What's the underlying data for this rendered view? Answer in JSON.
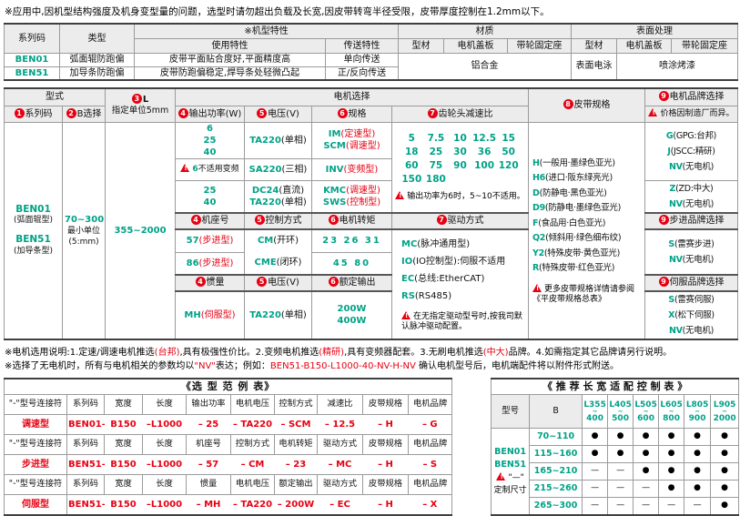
{
  "colors": {
    "teal": "#00a287",
    "red": "#e60012",
    "header_bg": "#ececec"
  },
  "page": {
    "top_note": "※应用中,因机型结构强度及机身变型量的问题，选型时请勿超出负载及长宽,因皮带转弯半径受限，皮带厚度控制在1.2mm以下。"
  },
  "overview": {
    "h_series": "系列码",
    "h_type": "类型",
    "h_feature": "※机型特性",
    "h_use": "使用特性",
    "h_trans": "传送特性",
    "h_material": "材质",
    "h_profile": "型材",
    "h_cover": "电机盖板",
    "h_pulley": "带轮固定座",
    "h_surface": "表面处理",
    "h_profile2": "型材",
    "h_cover2": "电机盖板",
    "h_pulley2": "带轮固定座",
    "rows": [
      {
        "series": "BEN01",
        "type": "弧面辊防跑偏",
        "use": "皮带平面贴合度好,平面精度高",
        "trans": "单向传送"
      },
      {
        "series": "BEN51",
        "type": "加导条防跑偏",
        "use": "皮带防跑偏稳定,焊导条处轻微凸起",
        "trans": "正/反向传送"
      }
    ],
    "material": "铝合金",
    "surface_profile": "表面电泳",
    "surface_paint": "喷涂烤漆"
  },
  "main": {
    "h_model": "型式",
    "h_motor": "电机选择",
    "h_series": {
      "n": "1",
      "t": "系列码"
    },
    "h_b": {
      "n": "2",
      "t": "B选择"
    },
    "h_l": {
      "n": "3",
      "t": "L"
    },
    "h_l2": "指定单位5mm",
    "h_power": {
      "n": "4",
      "t": "输出功率(W)"
    },
    "h_volt": {
      "n": "5",
      "t": "电压(V)"
    },
    "h_spec": {
      "n": "6",
      "t": "规格"
    },
    "h_ratio": {
      "n": "7",
      "t": "齿轮头减速比"
    },
    "h_belt": {
      "n": "8",
      "t": "皮带规格"
    },
    "h_brand": {
      "n": "9",
      "t": "电机品牌选择"
    },
    "brand_note": "价格因制造厂而异。",
    "series": [
      {
        "c": "BEN01",
        "d": "(弧面辊型)"
      },
      {
        "c": "BEN51",
        "d": "(加导条型)"
      }
    ],
    "b_value": "70~300",
    "b_sub": [
      "最小单位",
      "(5:mm)"
    ],
    "l_value": "355~2000",
    "ac1_power": [
      "6",
      "25",
      "40"
    ],
    "ac2_note_code": "6",
    "ac2_note_text": "不适用变频",
    "ac1_volt": [
      {
        "c": "TA220",
        "d": "(单相)"
      }
    ],
    "ac1_spec": [
      {
        "c": "IM",
        "d": "(定速型)",
        "r": 1
      },
      {
        "c": "SCM",
        "d": "(调速型)",
        "r": 1
      }
    ],
    "ac2_volt": [
      {
        "c": "SA220",
        "d": "(三相)"
      }
    ],
    "ac2_spec": [
      {
        "c": "INV",
        "d": "(变频型)",
        "r": 1
      }
    ],
    "ac3_power": [
      "25",
      "40"
    ],
    "ac3_volt": [
      {
        "c": "DC24",
        "d": "(直流)"
      },
      {
        "c": "TA220",
        "d": "(单相)"
      }
    ],
    "ac3_spec": [
      {
        "c": "KMC",
        "d": "(调速型)",
        "r": 1
      },
      {
        "c": "SWS",
        "d": "(控制型)",
        "r": 1
      }
    ],
    "ratio_lines": [
      [
        "5",
        "7.5",
        "10",
        "12.5",
        "15"
      ],
      [
        "18",
        "25",
        "30",
        "36",
        "50"
      ],
      [
        "60",
        "75",
        "90",
        "100",
        "120"
      ],
      [
        "150",
        "180"
      ]
    ],
    "ratio_note": "输出功率为6时，5~10不适用。",
    "sub_step": [
      {
        "n": "4",
        "t": "机座号"
      },
      {
        "n": "5",
        "t": "控制方式"
      },
      {
        "n": "6",
        "t": "电机转矩"
      },
      {
        "n": "7",
        "t": "驱动方式"
      }
    ],
    "step_frame1": [
      {
        "c": "57",
        "d": "(步进型)",
        "r": 1
      }
    ],
    "step_frame2": [
      {
        "c": "86",
        "d": "(步进型)",
        "r": 1
      }
    ],
    "step_ctrl": [
      {
        "c": "CM",
        "d": "(开环)"
      },
      {
        "c": "CME",
        "d": "(闭环)"
      }
    ],
    "step_torque1": "23 26 31",
    "step_torque2": "45 80",
    "sub_servo": [
      {
        "n": "4",
        "t": "惯量"
      },
      {
        "n": "5",
        "t": "电压(V)"
      },
      {
        "n": "6",
        "t": "额定输出"
      }
    ],
    "servo_inertia": [
      {
        "c": "MH",
        "d": "(伺服型)",
        "r": 1
      }
    ],
    "servo_volt": [
      {
        "c": "TA220",
        "d": "(单相)"
      }
    ],
    "servo_output": [
      "200W",
      "400W"
    ],
    "drive_items": [
      {
        "c": "MC",
        "d": "(脉冲通用型)"
      },
      {
        "c": "IO",
        "d": "(IO控制型):伺服不适用"
      },
      {
        "c": "EC",
        "d": "(总线:EtherCAT)"
      },
      {
        "c": "RS",
        "d": "(RS485)"
      }
    ],
    "drive_note": "在无指定驱动型号时,按我司默认脉冲驱动配置。",
    "belts": [
      {
        "c": "H",
        "d": "(一般用·墨绿色亚光)"
      },
      {
        "c": "H6",
        "d": "(进口·阪东绿亮光)"
      },
      {
        "c": "D",
        "d": "(防静电·黑色亚光)"
      },
      {
        "c": "D9",
        "d": "(防静电·墨绿色亚光)"
      },
      {
        "c": "F",
        "d": "(食品用·白色亚光)"
      },
      {
        "c": "Q2",
        "d": "(倾斜用·绿色细布纹)"
      },
      {
        "c": "Y2",
        "d": "(特殊皮带·黄色亚光)"
      },
      {
        "c": "R",
        "d": "(特殊皮带·红色亚光)"
      }
    ],
    "belt_note": "更多皮带规格详情请参阅《平皮带规格总表》",
    "brand_ac": [
      {
        "c": "G",
        "d": "(GPG:台邦)"
      },
      {
        "c": "J",
        "d": "(JSCC:精研)"
      },
      {
        "c": "NV",
        "d": "(无电机)"
      }
    ],
    "brand_dc": [
      {
        "c": "Z",
        "d": "(ZD:中大)"
      },
      {
        "c": "NV",
        "d": "(无电机)"
      }
    ],
    "h_brand_step": {
      "n": "9",
      "t": "步进品牌选择"
    },
    "brand_step": [
      {
        "c": "S",
        "d": "(雷赛步进)"
      },
      {
        "c": "NV",
        "d": "(无电机)"
      }
    ],
    "h_brand_servo": {
      "n": "9",
      "t": "伺服品牌选择"
    },
    "brand_servo": [
      {
        "c": "S",
        "d": "(雷赛伺服)"
      },
      {
        "c": "X",
        "d": "(松下伺服)"
      },
      {
        "c": "NV",
        "d": "(无电机)"
      }
    ]
  },
  "notes": {
    "line1": [
      {
        "t": "※电机选用说明:1.定速/调速电机推选"
      },
      {
        "t": "(台邦)",
        "r": 1
      },
      {
        "t": ",具有极强性价比。2.变频电机推选"
      },
      {
        "t": "(精研)",
        "r": 1
      },
      {
        "t": ",具有变频器配套。3.无刷电机推选"
      },
      {
        "t": "(中大)",
        "r": 1
      },
      {
        "t": "品牌。4.如需指定其它品牌请另行说明。"
      }
    ],
    "line2": [
      {
        "t": "※选择了无电机时，所有与电机相关的参数均以"
      },
      {
        "t": "\"NV\"",
        "r": 1
      },
      {
        "t": "表达；例如："
      },
      {
        "t": "BEN51-B150-L1000-40-NV-H-NV",
        "r": 1
      },
      {
        "t": " 确认电机型号后，电机端配件将以附件形式附送。"
      }
    ]
  },
  "examples": {
    "title": "《选 型 范 例 表》",
    "connector": "\"-\"型号连接符",
    "groups": [
      {
        "type": "调速型",
        "headers": [
          "系列码",
          "宽度",
          "长度",
          "输出功率",
          "电机电压",
          "控制方式",
          "减速比",
          "皮带规格",
          "电机品牌"
        ],
        "values": [
          "BEN01",
          "B150",
          "L1000",
          "25",
          "TA220",
          "SCM",
          "12.5",
          "H",
          "G"
        ]
      },
      {
        "type": "步进型",
        "headers": [
          "系列码",
          "宽度",
          "长度",
          "机座号",
          "控制方式",
          "电机转矩",
          "驱动方式",
          "皮带规格",
          "电机品牌"
        ],
        "values": [
          "BEN51",
          "B150",
          "L1000",
          "57",
          "CM",
          "23",
          "MC",
          "H",
          "S"
        ]
      },
      {
        "type": "伺服型",
        "headers": [
          "系列码",
          "宽度",
          "长度",
          "惯量",
          "电机电压",
          "额定输出",
          "驱动方式",
          "皮带规格",
          "电机品牌"
        ],
        "values": [
          "BEN51",
          "B150",
          "L1000",
          "MH",
          "TA220",
          "200W",
          "EC",
          "H",
          "X"
        ]
      }
    ]
  },
  "adapt": {
    "title": "《 推 荐 长 宽 适 配 控 制 表 》",
    "h_model": "型号",
    "h_b": "B",
    "tilde": "~",
    "l_headers": [
      {
        "top": "L355",
        "bot": "400"
      },
      {
        "top": "L405",
        "bot": "500"
      },
      {
        "top": "L505",
        "bot": "600"
      },
      {
        "top": "L605",
        "bot": "800"
      },
      {
        "top": "L805",
        "bot": "900"
      },
      {
        "top": "L905",
        "bot": "2000"
      }
    ],
    "model_cell": {
      "models": [
        "BEN01",
        "BEN51"
      ],
      "note_sym": "\"—\"",
      "note": "定制尺寸"
    },
    "rows": [
      {
        "b": "70~110",
        "dots": [
          1,
          1,
          1,
          1,
          1,
          1
        ]
      },
      {
        "b": "115~160",
        "dots": [
          1,
          1,
          1,
          1,
          1,
          1
        ]
      },
      {
        "b": "165~210",
        "dots": [
          0,
          0,
          1,
          1,
          1,
          1
        ]
      },
      {
        "b": "215~260",
        "dots": [
          0,
          0,
          0,
          1,
          1,
          1
        ]
      },
      {
        "b": "265~300",
        "dots": [
          0,
          0,
          0,
          0,
          0,
          1
        ]
      }
    ],
    "dot_char": "●",
    "dash_char": "—"
  }
}
